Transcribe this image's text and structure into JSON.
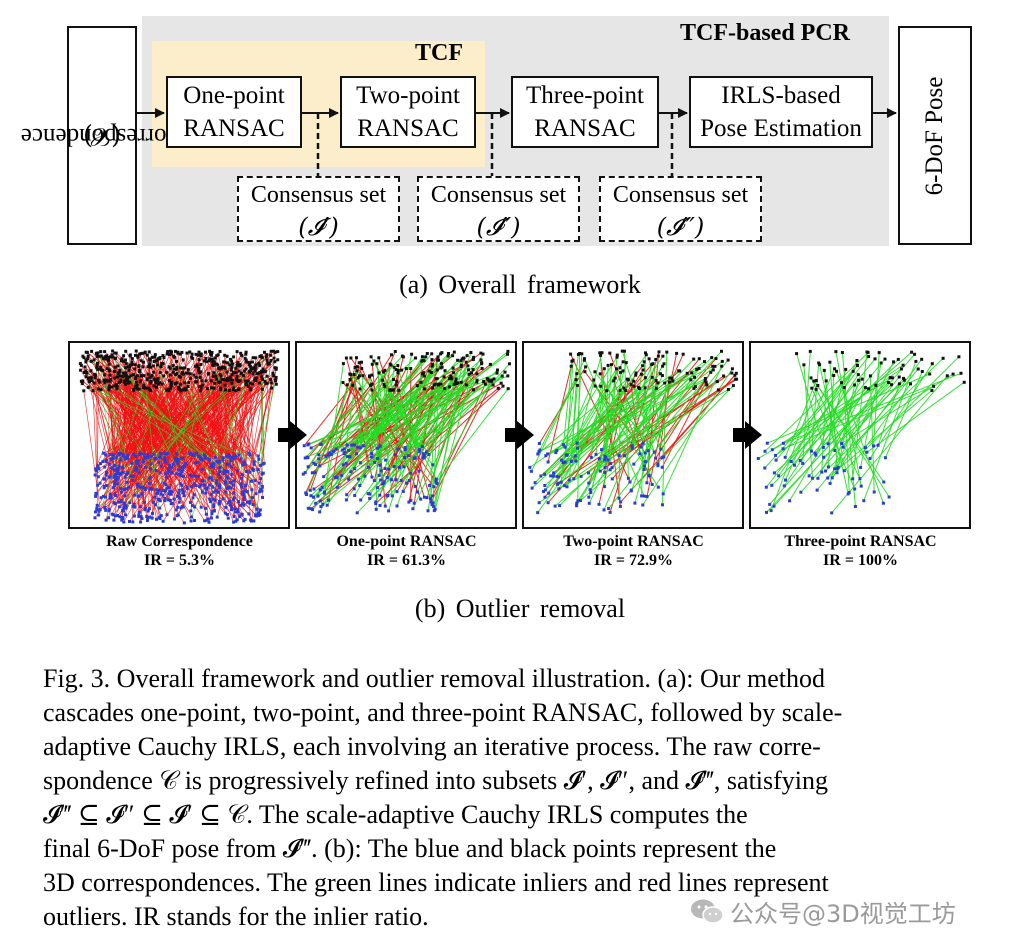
{
  "framework": {
    "tcf_pcr_label": "TCF-based PCR",
    "tcf_label": "TCF",
    "correspondence_label": "Correspondence",
    "correspondence_symbol": "(𝒞)",
    "stages": [
      {
        "line1": "One-point",
        "line2": "RANSAC"
      },
      {
        "line1": "Two-point",
        "line2": "RANSAC"
      },
      {
        "line1": "Three-point",
        "line2": "RANSAC"
      },
      {
        "line1": "IRLS-based",
        "line2": "Pose Estimation"
      }
    ],
    "consensus": [
      {
        "label": "Consensus set",
        "symbol": "(𝓘′)"
      },
      {
        "label": "Consensus set",
        "symbol": "(𝓘″)"
      },
      {
        "label": "Consensus set",
        "symbol": "(𝓘‴)"
      }
    ],
    "output_label": "6-DoF Pose",
    "caption": "(a) Overall framework"
  },
  "outlier_removal": {
    "panels": [
      {
        "title": "Raw Correspondence",
        "ir": "IR = 5.3%",
        "inliers": 0.053
      },
      {
        "title": "One-point RANSAC",
        "ir": "IR = 61.3%",
        "inliers": 0.613
      },
      {
        "title": "Two-point RANSAC",
        "ir": "IR = 72.9%",
        "inliers": 0.729
      },
      {
        "title": "Three-point RANSAC",
        "ir": "IR = 100%",
        "inliers": 1.0
      }
    ],
    "caption": "(b) Outlier removal"
  },
  "figure_caption": {
    "lines": [
      "Fig. 3.  Overall framework and outlier removal illustration. (a): Our method",
      "cascades one-point, two-point, and three-point RANSAC, followed by scale-",
      "adaptive Cauchy IRLS, each involving an iterative process. The raw corre-",
      "spondence 𝒞 is progressively refined into subsets 𝓘′, 𝓘″, and 𝓘‴, satisfying",
      "𝓘‴  ⊆  𝓘″  ⊆  𝓘′  ⊆  𝒞. The scale-adaptive Cauchy IRLS computes the",
      "final 6-DoF pose from 𝓘‴. (b): The blue and black points represent the",
      "3D correspondences. The green lines indicate inliers and red lines represent",
      "outliers. IR stands for the inlier ratio."
    ]
  },
  "watermark": "公众号@3D视觉工坊",
  "colors": {
    "inlier": "#22dd22",
    "outlier": "#ee1111",
    "tcf_bg": "#fdeecb",
    "pcr_bg": "#e6e6e6"
  }
}
